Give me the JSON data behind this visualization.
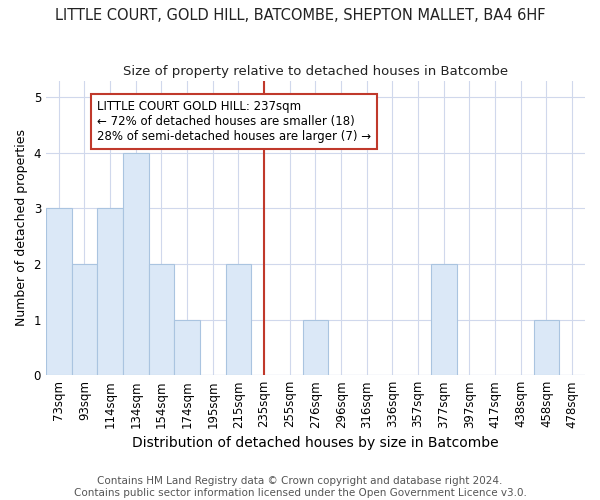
{
  "title": "LITTLE COURT, GOLD HILL, BATCOMBE, SHEPTON MALLET, BA4 6HF",
  "subtitle": "Size of property relative to detached houses in Batcombe",
  "xlabel": "Distribution of detached houses by size in Batcombe",
  "ylabel": "Number of detached properties",
  "categories": [
    "73sqm",
    "93sqm",
    "114sqm",
    "134sqm",
    "154sqm",
    "174sqm",
    "195sqm",
    "215sqm",
    "235sqm",
    "255sqm",
    "276sqm",
    "296sqm",
    "316sqm",
    "336sqm",
    "357sqm",
    "377sqm",
    "397sqm",
    "417sqm",
    "438sqm",
    "458sqm",
    "478sqm"
  ],
  "values": [
    3,
    2,
    3,
    4,
    2,
    1,
    0,
    2,
    0,
    0,
    1,
    0,
    0,
    0,
    0,
    2,
    0,
    0,
    0,
    1,
    0
  ],
  "bar_color": "#dbe8f7",
  "bar_edge_color": "#aac4e0",
  "vline_x_idx": 8,
  "vline_color": "#c0392b",
  "annotation_line1": "LITTLE COURT GOLD HILL: 237sqm",
  "annotation_line2": "← 72% of detached houses are smaller (18)",
  "annotation_line3": "28% of semi-detached houses are larger (7) →",
  "ylim": [
    0,
    5.3
  ],
  "yticks": [
    0,
    1,
    2,
    3,
    4,
    5
  ],
  "grid_color": "#d0d8ec",
  "background_color": "#ffffff",
  "title_color": "#222222",
  "title_fontsize": 10.5,
  "subtitle_fontsize": 9.5,
  "xlabel_fontsize": 10,
  "ylabel_fontsize": 9,
  "tick_fontsize": 8.5,
  "annotation_fontsize": 8.5,
  "footer_fontsize": 7.5,
  "footer": "Contains HM Land Registry data © Crown copyright and database right 2024.\nContains public sector information licensed under the Open Government Licence v3.0."
}
